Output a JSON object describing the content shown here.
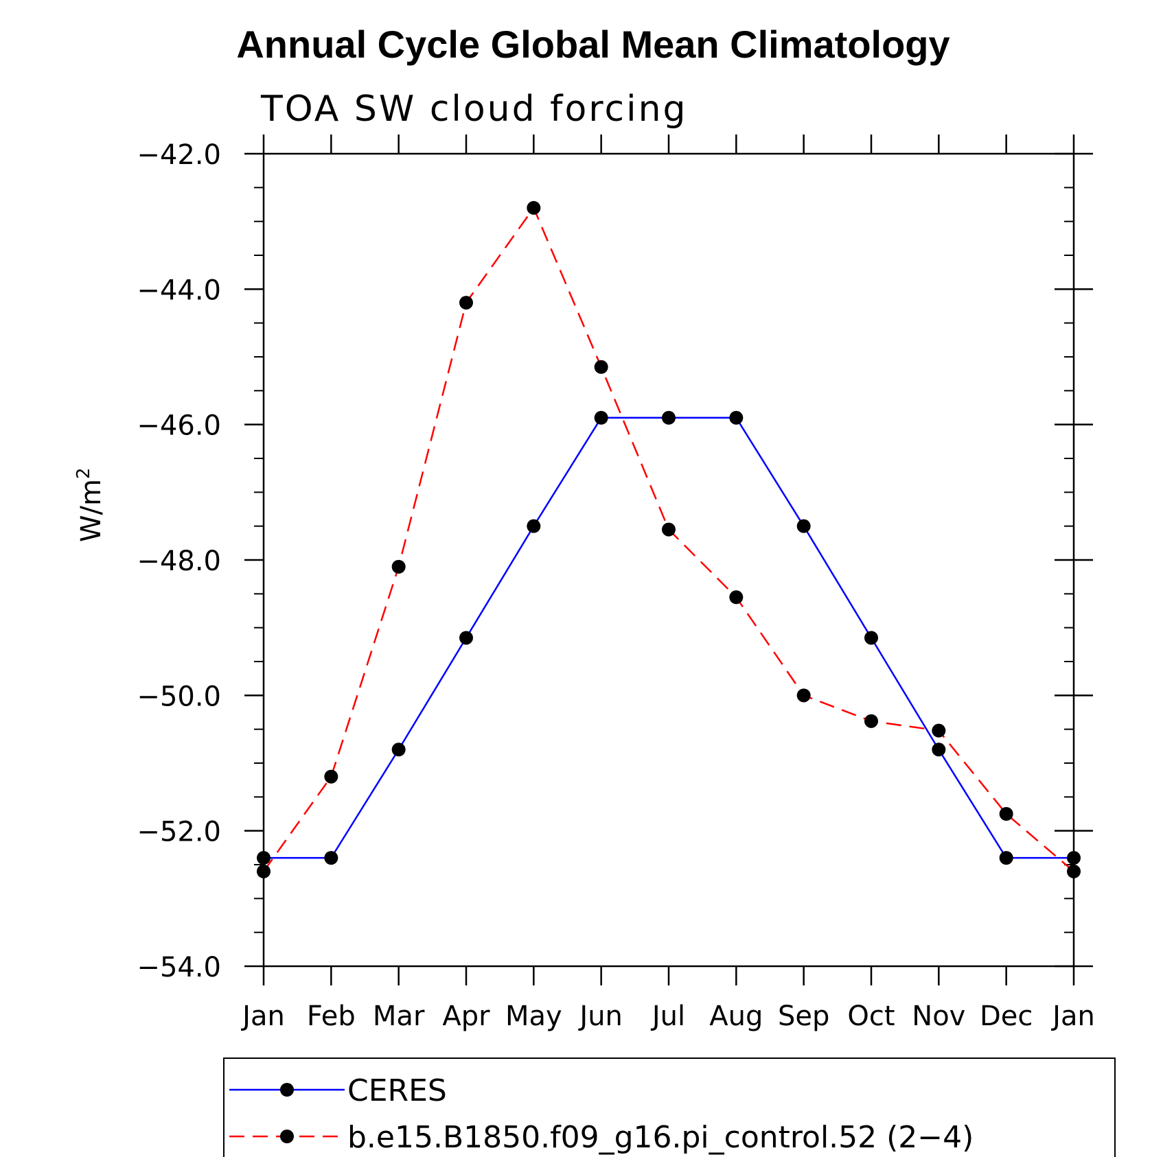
{
  "chart_data": {
    "type": "line",
    "title": "Annual Cycle Global Mean Climatology",
    "subtitle": "TOA SW cloud forcing",
    "ylabel": "W/m",
    "ylabel_sup": "2",
    "categories": [
      "Jan",
      "Feb",
      "Mar",
      "Apr",
      "May",
      "Jun",
      "Jul",
      "Aug",
      "Sep",
      "Oct",
      "Nov",
      "Dec",
      "Jan"
    ],
    "ylim": [
      -54.0,
      -42.0
    ],
    "yticks": [
      -42.0,
      -44.0,
      -46.0,
      -48.0,
      -50.0,
      -52.0,
      -54.0
    ],
    "ytick_labels": [
      "−42.0",
      "−44.0",
      "−46.0",
      "−48.0",
      "−50.0",
      "−52.0",
      "−54.0"
    ],
    "grid": false,
    "legend_position": "bottom",
    "series": [
      {
        "name": "CERES",
        "color": "#0000ff",
        "line_style": "solid",
        "marker": "filled-circle",
        "values": [
          -52.4,
          -52.4,
          -50.8,
          -49.15,
          -47.5,
          -45.9,
          -45.9,
          -45.9,
          -47.5,
          -49.15,
          -50.8,
          -52.4,
          -52.4
        ]
      },
      {
        "name": "b.e15.B1850.f09_g16.pi_control.52 (2−4)",
        "color": "#ff0000",
        "line_style": "dashed",
        "marker": "filled-circle",
        "values": [
          -52.6,
          -51.2,
          -48.1,
          -44.2,
          -42.8,
          -45.15,
          -47.55,
          -48.55,
          -50.0,
          -50.38,
          -50.52,
          -51.75,
          -52.6
        ]
      }
    ]
  }
}
